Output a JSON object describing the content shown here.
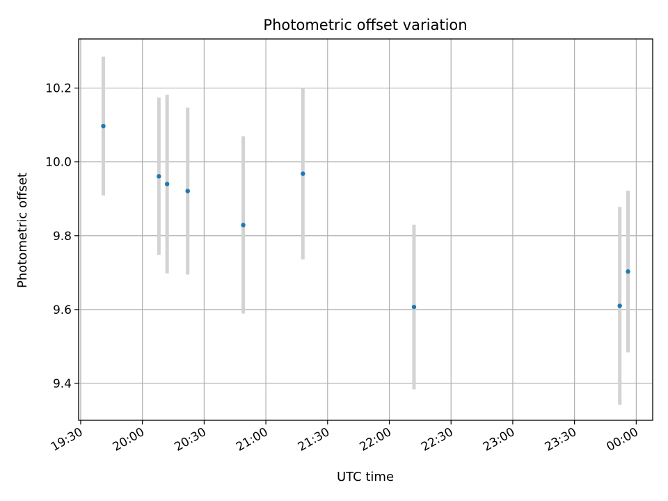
{
  "chart_data": {
    "type": "scatter",
    "title": "Photometric offset variation",
    "xlabel": "UTC time",
    "ylabel": "Photometric offset",
    "x_ticks": [
      "19:30",
      "20:00",
      "20:30",
      "21:00",
      "21:30",
      "22:00",
      "22:30",
      "23:00",
      "23:30",
      "00:00"
    ],
    "y_ticks": [
      "9.4",
      "9.6",
      "9.8",
      "10.0",
      "10.2"
    ],
    "xlim": [
      "19:29",
      "00:08"
    ],
    "ylim": [
      9.3,
      10.333
    ],
    "grid": true,
    "colors": {
      "point": "#1f77b4",
      "errorbar": "#d3d3d3",
      "grid": "#b0b0b0"
    },
    "points": [
      {
        "x": "19:41",
        "y": 10.097,
        "y_err": 0.188
      },
      {
        "x": "20:08",
        "y": 9.961,
        "y_err": 0.213
      },
      {
        "x": "20:12",
        "y": 9.94,
        "y_err": 0.242
      },
      {
        "x": "20:22",
        "y": 9.921,
        "y_err": 0.226
      },
      {
        "x": "20:49",
        "y": 9.829,
        "y_err": 0.24
      },
      {
        "x": "21:18",
        "y": 9.968,
        "y_err": 0.232
      },
      {
        "x": "22:12",
        "y": 9.607,
        "y_err": 0.223
      },
      {
        "x": "23:52",
        "y": 9.61,
        "y_err": 0.268
      },
      {
        "x": "23:56",
        "y": 9.703,
        "y_err": 0.219
      }
    ]
  }
}
